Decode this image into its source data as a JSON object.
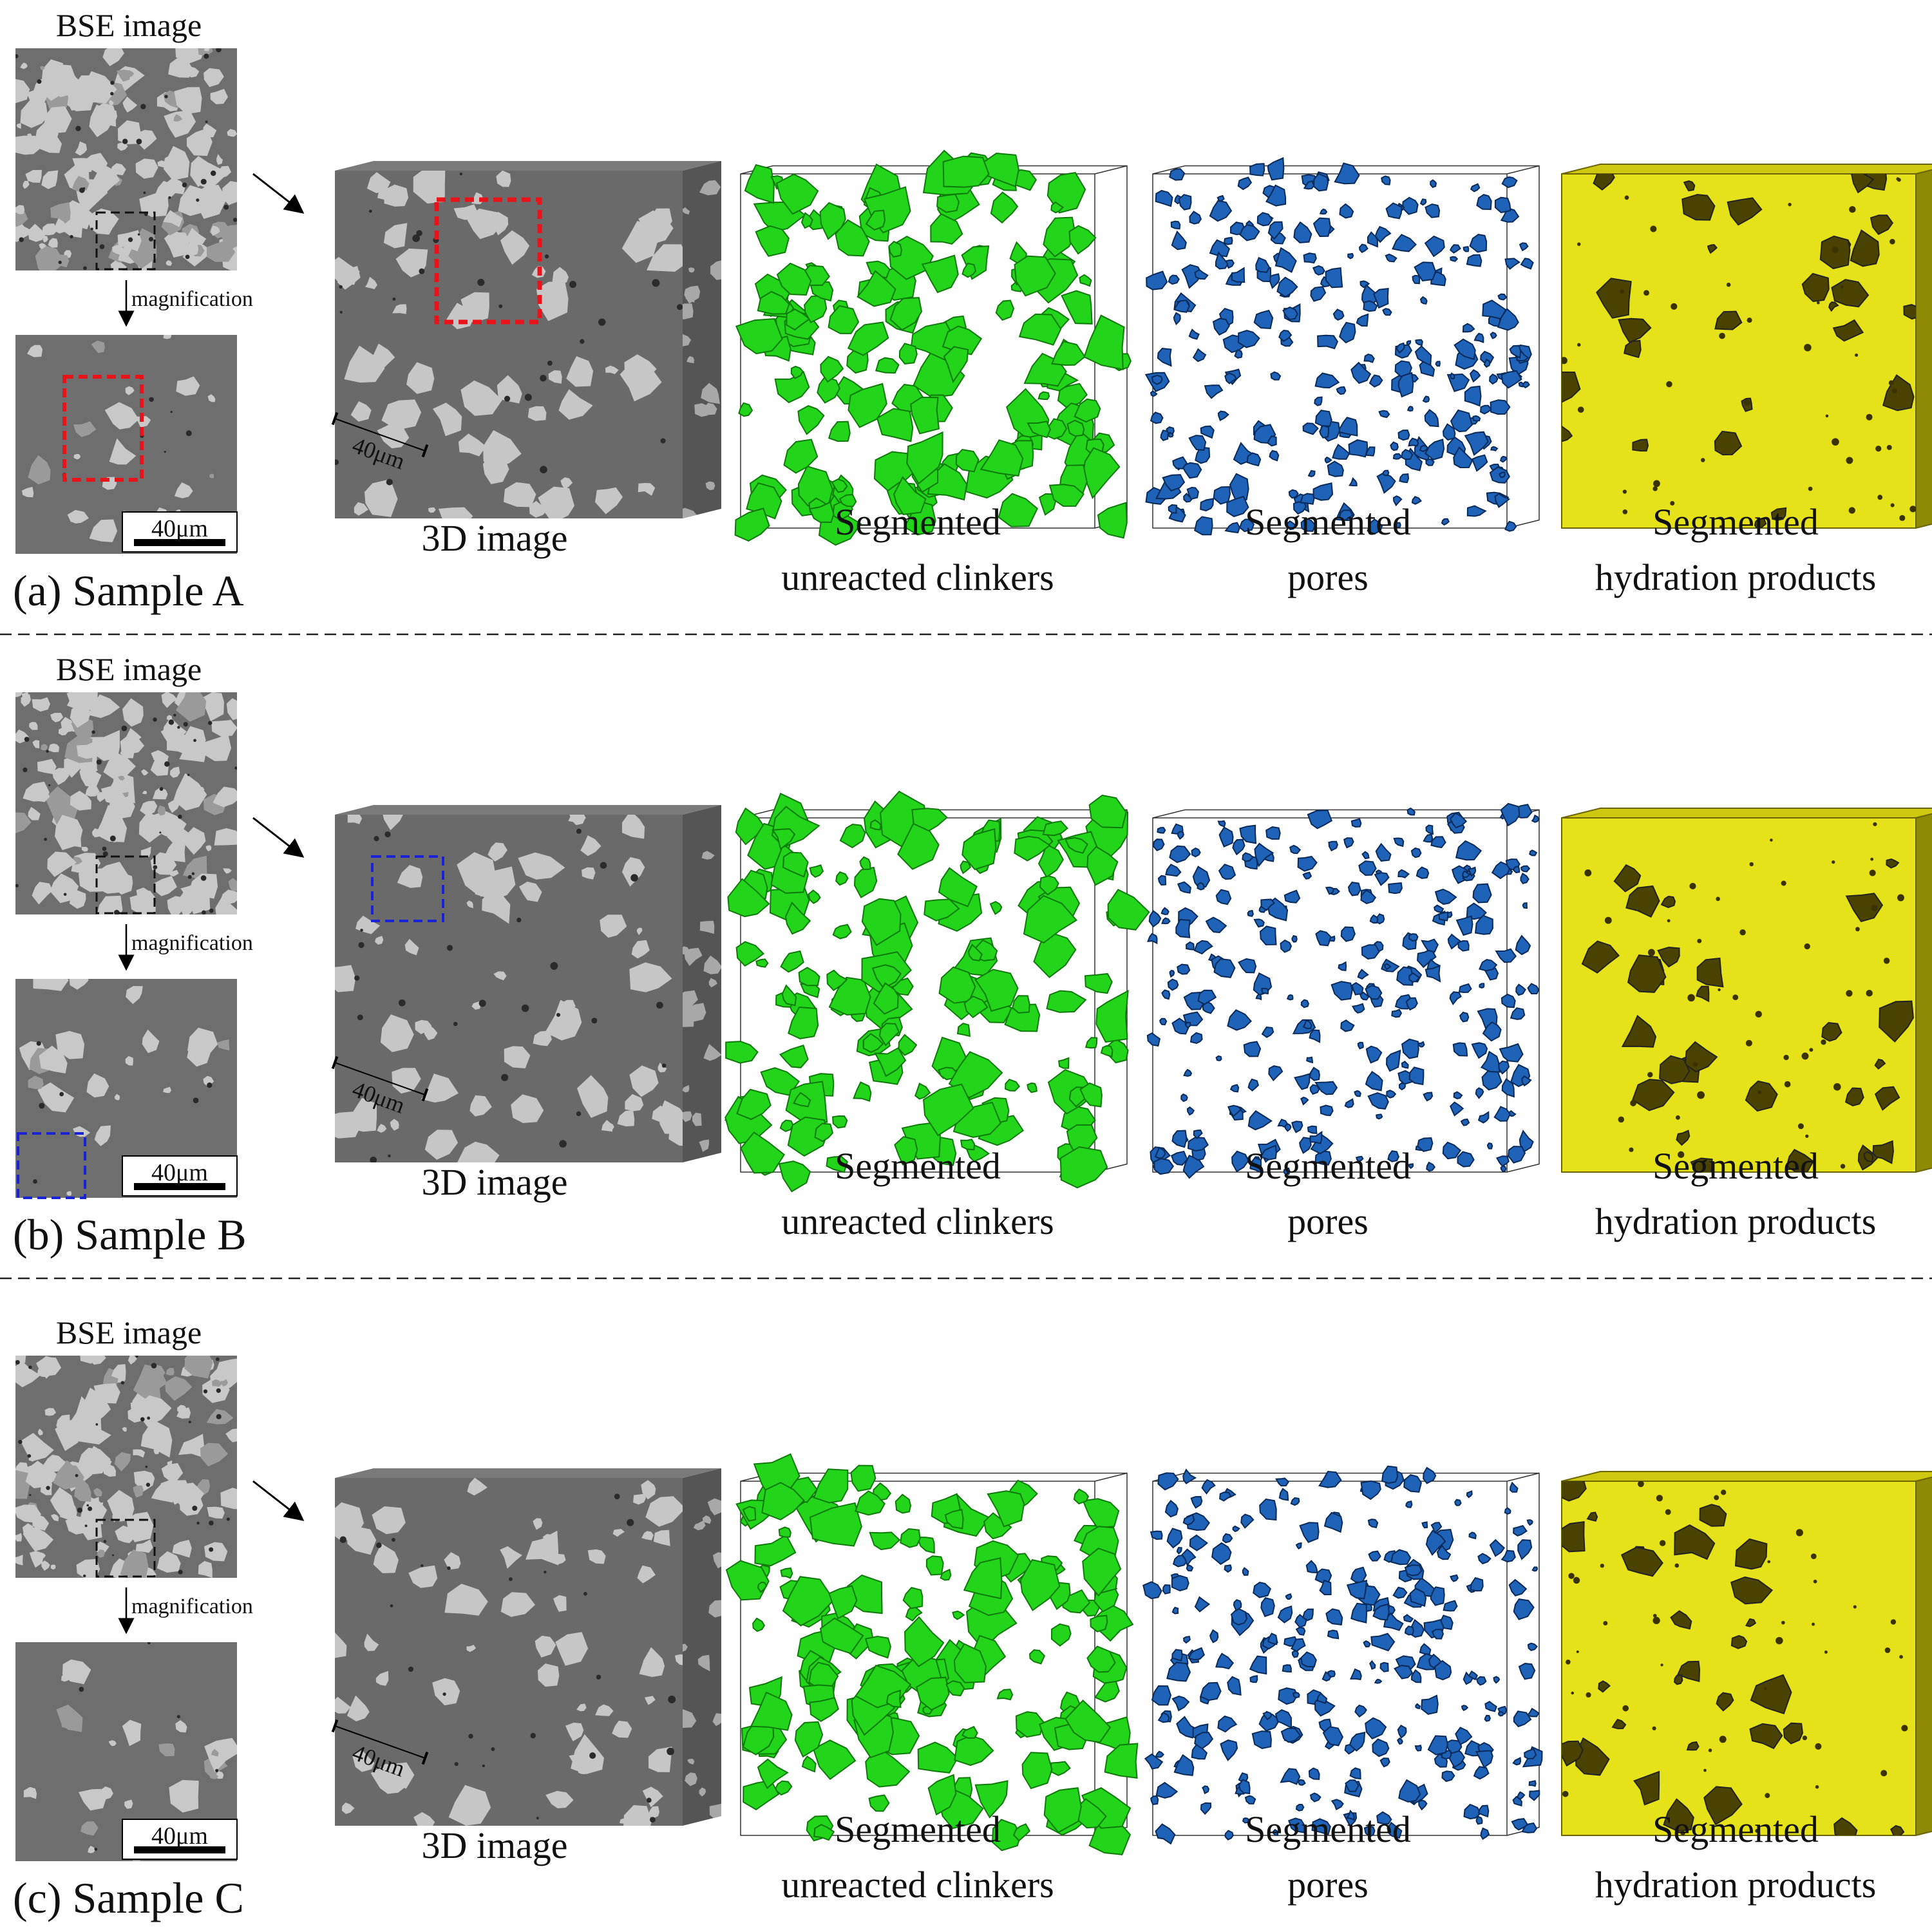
{
  "figure": {
    "bse_label": "BSE image",
    "magnification_label": "magnification",
    "scale_label": "40μm",
    "cube_scale_label": "40μm",
    "panel_titles": [
      "3D image",
      "Segmented\nunreacted clinkers",
      "Segmented\npores",
      "Segmented\nhydration products"
    ]
  },
  "samples": [
    {
      "label": "(a) Sample A",
      "marker_color": "#e8141a"
    },
    {
      "label": "(b) Sample B",
      "marker_color": "#1a22d8"
    },
    {
      "label": "(c) Sample C",
      "marker_color": null
    }
  ],
  "colors": {
    "clinker": "#22d41a",
    "clinker_dark": "#0f7a0a",
    "pore": "#1e63b8",
    "pore_dark": "#0a2a5a",
    "hydration": "#e6e21a",
    "hydration_dark": "#4a4200",
    "bse_matrix": "#6e6e6e",
    "bse_grain": "#c8c8c8"
  }
}
